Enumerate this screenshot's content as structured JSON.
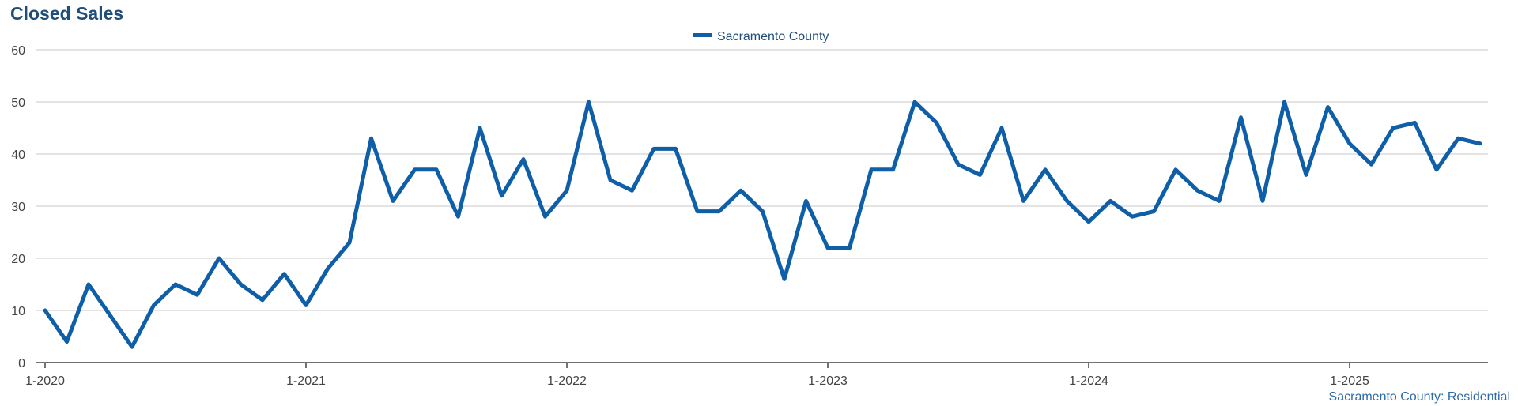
{
  "title": "Closed Sales",
  "footer": "Sacramento County: Residential",
  "colors": {
    "series": "#0f5ea8",
    "grid": "#c8c8c8",
    "axis": "#444444",
    "title": "#1f4e79"
  },
  "chart_data": {
    "type": "line",
    "title": "Closed Sales",
    "xlabel": "",
    "ylabel": "",
    "ylim": [
      0,
      60
    ],
    "yticks": [
      0,
      10,
      20,
      30,
      40,
      50,
      60
    ],
    "x_start": "1-2020",
    "x_tick_labels": [
      "1-2020",
      "1-2021",
      "1-2022",
      "1-2023",
      "1-2024",
      "1-2025"
    ],
    "grid": true,
    "legend": "top-center",
    "series": [
      {
        "name": "Sacramento County",
        "color": "#0f5ea8",
        "values": [
          10,
          4,
          15,
          9,
          3,
          11,
          15,
          13,
          20,
          15,
          12,
          17,
          11,
          18,
          23,
          43,
          31,
          37,
          37,
          28,
          45,
          32,
          39,
          28,
          33,
          50,
          35,
          33,
          41,
          41,
          29,
          29,
          33,
          29,
          16,
          31,
          22,
          22,
          37,
          37,
          50,
          46,
          38,
          36,
          45,
          31,
          37,
          31,
          27,
          31,
          28,
          29,
          37,
          33,
          31,
          47,
          31,
          50,
          36,
          49,
          42,
          38,
          45,
          46,
          37,
          43,
          42
        ]
      }
    ]
  }
}
